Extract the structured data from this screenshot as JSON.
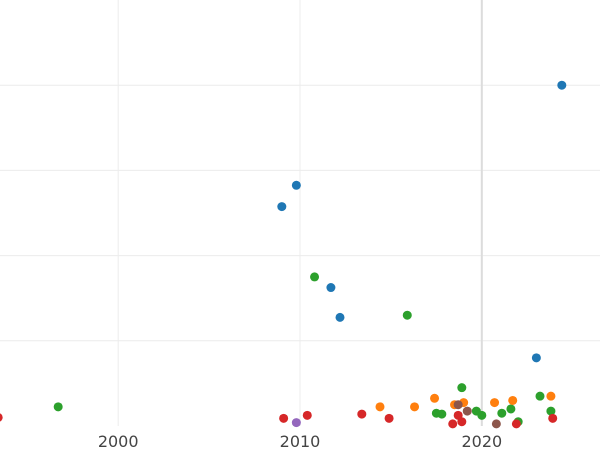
{
  "chart_data": {
    "type": "scatter",
    "title": "",
    "xlabel": "",
    "ylabel": "",
    "xlim": [
      1993.5,
      2026.5
    ],
    "ylim": [
      0,
      10
    ],
    "grid": true,
    "x_ticks": [
      2000,
      2010,
      2020
    ],
    "x_tick_labels": [
      "2000",
      "2010",
      "2020"
    ],
    "y_gridlines": [
      2,
      4,
      6,
      8
    ],
    "marked_x": 2020,
    "series": [
      {
        "color": "#1f77b4",
        "points": [
          {
            "x": 2024.4,
            "y": 8.0
          },
          {
            "x": 2009.8,
            "y": 5.65
          },
          {
            "x": 2009.0,
            "y": 5.15
          },
          {
            "x": 2011.7,
            "y": 3.25
          },
          {
            "x": 2012.2,
            "y": 2.55
          },
          {
            "x": 2023.0,
            "y": 1.6
          }
        ]
      },
      {
        "color": "#2ca02c",
        "points": [
          {
            "x": 2010.8,
            "y": 3.5
          },
          {
            "x": 2015.9,
            "y": 2.6
          },
          {
            "x": 1996.7,
            "y": 0.45
          },
          {
            "x": 2018.9,
            "y": 0.9
          },
          {
            "x": 2017.5,
            "y": 0.3
          },
          {
            "x": 2017.8,
            "y": 0.28
          },
          {
            "x": 2019.7,
            "y": 0.35
          },
          {
            "x": 2020.0,
            "y": 0.25
          },
          {
            "x": 2021.1,
            "y": 0.3
          },
          {
            "x": 2021.6,
            "y": 0.4
          },
          {
            "x": 2022.0,
            "y": 0.1
          },
          {
            "x": 2023.2,
            "y": 0.7
          },
          {
            "x": 2023.8,
            "y": 0.35
          }
        ]
      },
      {
        "color": "#ff7f0e",
        "points": [
          {
            "x": 2014.4,
            "y": 0.45
          },
          {
            "x": 2016.3,
            "y": 0.45
          },
          {
            "x": 2017.4,
            "y": 0.65
          },
          {
            "x": 2018.5,
            "y": 0.5
          },
          {
            "x": 2019.0,
            "y": 0.55
          },
          {
            "x": 2020.7,
            "y": 0.55
          },
          {
            "x": 2021.7,
            "y": 0.6
          },
          {
            "x": 2023.8,
            "y": 0.7
          }
        ]
      },
      {
        "color": "#d62728",
        "points": [
          {
            "x": 1993.4,
            "y": 0.2
          },
          {
            "x": 2009.1,
            "y": 0.18
          },
          {
            "x": 2010.4,
            "y": 0.25
          },
          {
            "x": 2013.4,
            "y": 0.28
          },
          {
            "x": 2014.9,
            "y": 0.18
          },
          {
            "x": 2018.4,
            "y": 0.05
          },
          {
            "x": 2018.7,
            "y": 0.25
          },
          {
            "x": 2018.9,
            "y": 0.1
          },
          {
            "x": 2021.9,
            "y": 0.05
          },
          {
            "x": 2023.9,
            "y": 0.18
          }
        ]
      },
      {
        "color": "#8c564b",
        "points": [
          {
            "x": 2018.7,
            "y": 0.5
          },
          {
            "x": 2019.2,
            "y": 0.35
          },
          {
            "x": 2020.8,
            "y": 0.05
          }
        ]
      },
      {
        "color": "#9467bd",
        "points": [
          {
            "x": 2009.8,
            "y": 0.08
          }
        ]
      }
    ]
  }
}
